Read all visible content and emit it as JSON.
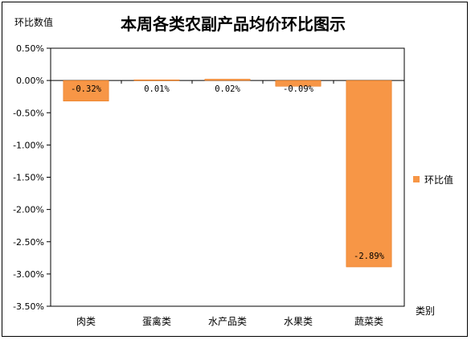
{
  "chart_data": {
    "type": "bar",
    "title": "本周各类农副产品均价环比图示",
    "ylabel": "环比数值",
    "xlabel": "类别",
    "categories": [
      "肉类",
      "蛋禽类",
      "水产品类",
      "水果类",
      "蔬菜类"
    ],
    "series": [
      {
        "name": "环比值",
        "values": [
          -0.32,
          0.01,
          0.02,
          -0.09,
          -2.89
        ],
        "labels": [
          "-0.32%",
          "0.01%",
          "0.02%",
          "-0.09%",
          "-2.89%"
        ]
      }
    ],
    "ylim": [
      -3.5,
      0.5
    ],
    "yticks": [
      0.5,
      0.0,
      -0.5,
      -1.0,
      -1.5,
      -2.0,
      -2.5,
      -3.0,
      -3.5
    ],
    "ytick_labels": [
      "0.50%",
      "0.00%",
      "-0.50%",
      "-1.00%",
      "-1.50%",
      "-2.00%",
      "-2.50%",
      "-3.00%",
      "-3.50%"
    ],
    "grid": false,
    "legend": "right",
    "colors": {
      "bar": "#F79646",
      "bar_edge": "#E46C0A",
      "axis": "#000000"
    }
  }
}
